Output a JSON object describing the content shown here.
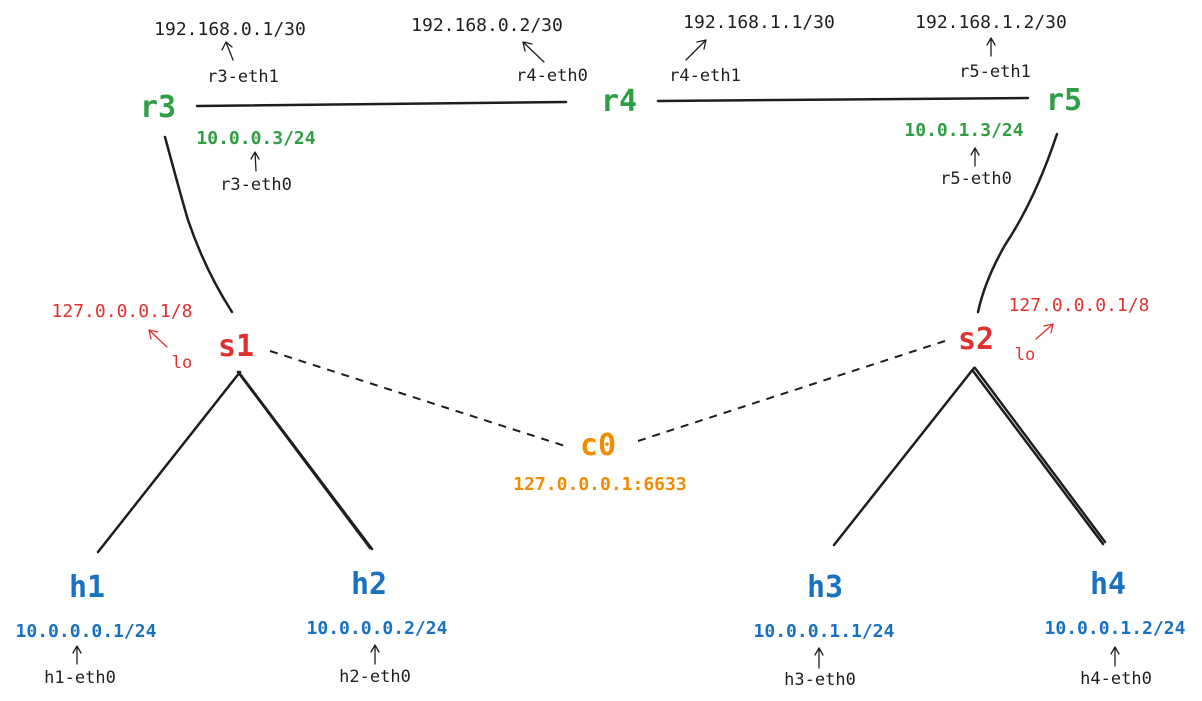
{
  "colors": {
    "router": "#2f9e44",
    "switch": "#e03131",
    "host": "#1971c2",
    "controller": "#f08c00",
    "text": "#1e1e1e",
    "line": "#1e1e1e"
  },
  "routers": {
    "r3": {
      "name": "r3",
      "wan_ip": "192.168.0.1/30",
      "wan_iface": "r3-eth1",
      "lan_ip": "10.0.0.3/24",
      "lan_iface": "r3-eth0"
    },
    "r4": {
      "name": "r4",
      "left_ip": "192.168.0.2/30",
      "left_iface": "r4-eth0",
      "right_ip": "192.168.1.1/30",
      "right_iface": "r4-eth1"
    },
    "r5": {
      "name": "r5",
      "wan_ip": "192.168.1.2/30",
      "wan_iface": "r5-eth1",
      "lan_ip": "10.0.1.3/24",
      "lan_iface": "r5-eth0"
    }
  },
  "switches": {
    "s1": {
      "name": "s1",
      "ip": "127.0.0.0.1/8",
      "iface": "lo"
    },
    "s2": {
      "name": "s2",
      "ip": "127.0.0.0.1/8",
      "iface": "lo"
    }
  },
  "controller": {
    "name": "c0",
    "address": "127.0.0.0.1:6633"
  },
  "hosts": {
    "h1": {
      "name": "h1",
      "ip": "10.0.0.0.1/24",
      "iface": "h1-eth0"
    },
    "h2": {
      "name": "h2",
      "ip": "10.0.0.0.2/24",
      "iface": "h2-eth0"
    },
    "h3": {
      "name": "h3",
      "ip": "10.0.0.1.1/24",
      "iface": "h3-eth0"
    },
    "h4": {
      "name": "h4",
      "ip": "10.0.0.1.2/24",
      "iface": "h4-eth0"
    }
  }
}
